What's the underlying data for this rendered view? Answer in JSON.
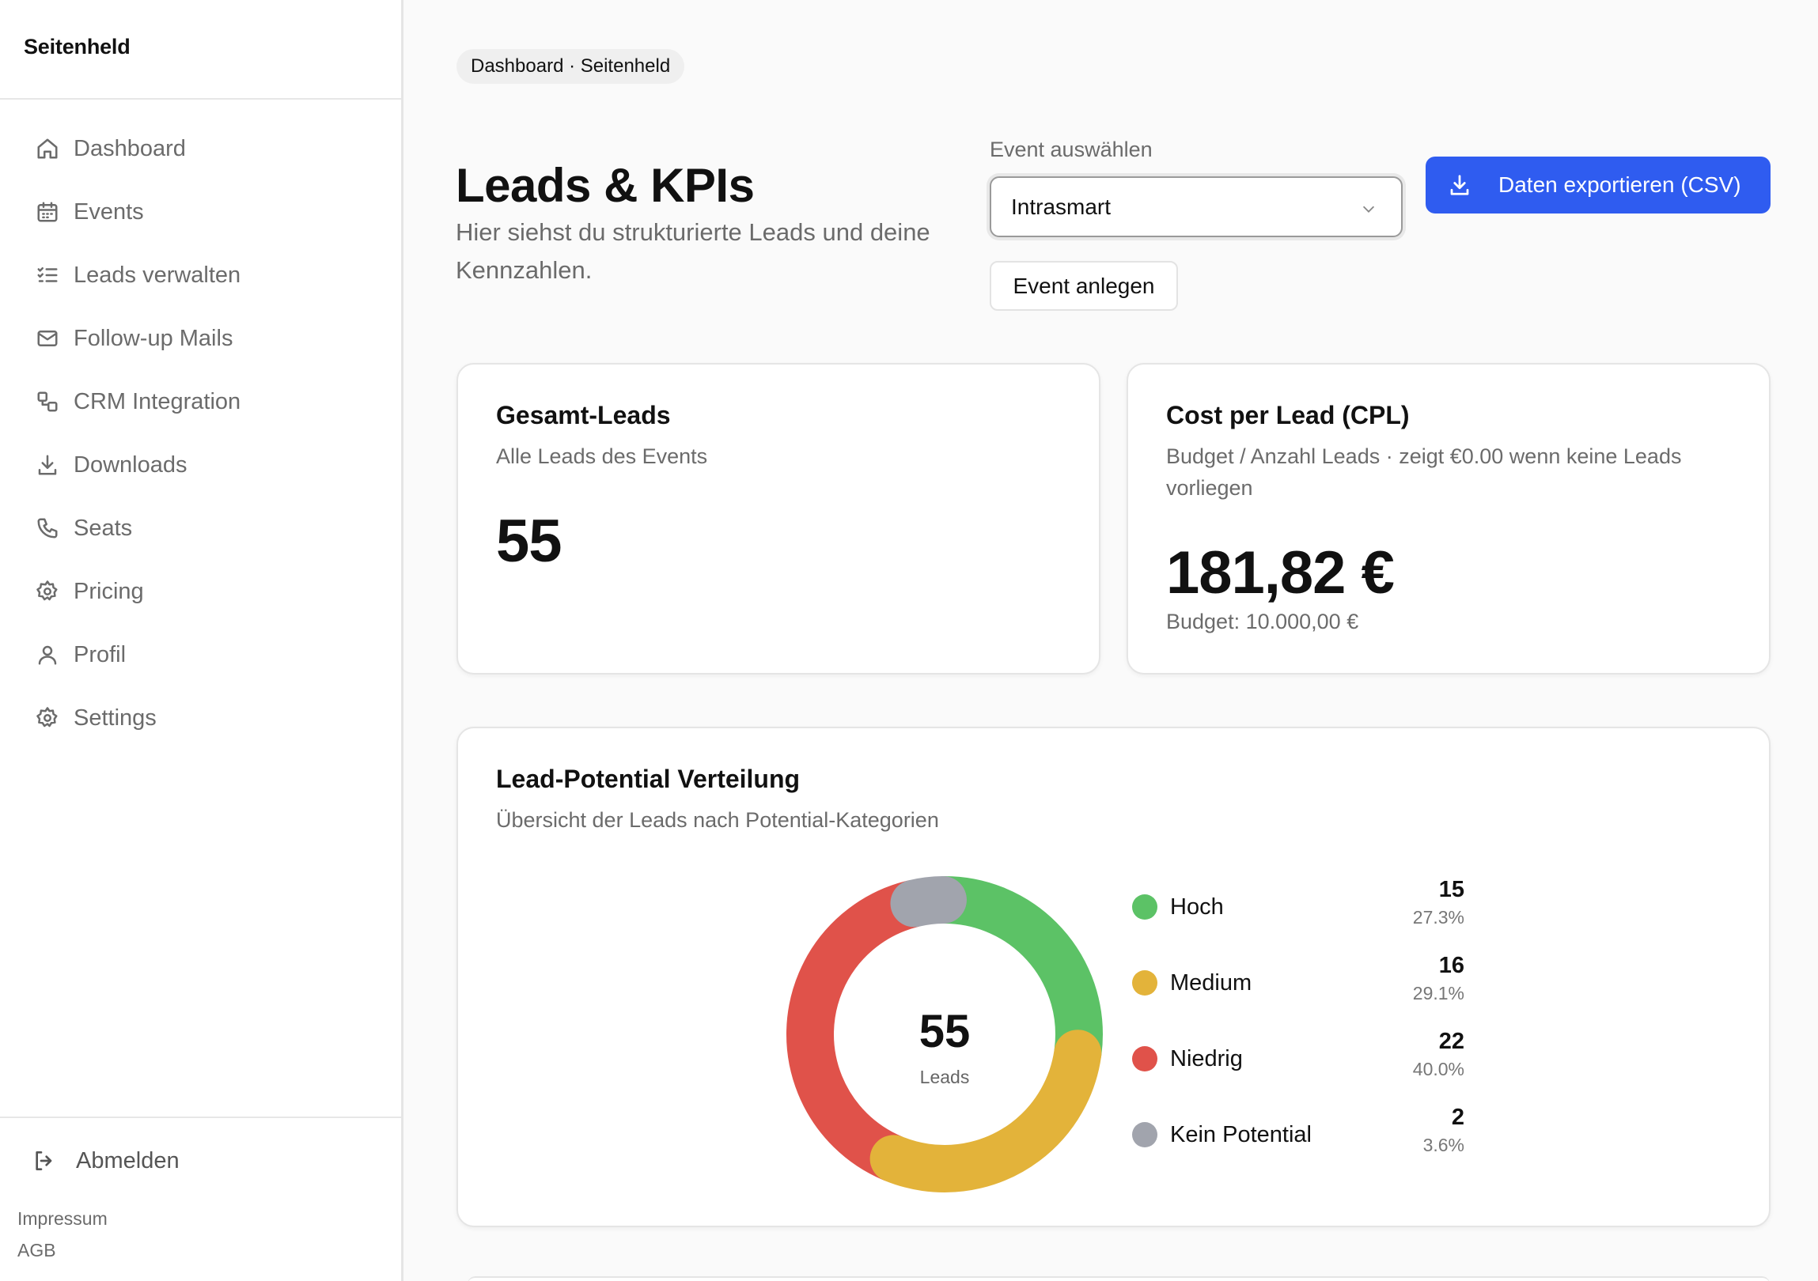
{
  "app": {
    "brand": "Seitenheld"
  },
  "sidebar": {
    "items": [
      {
        "label": "Dashboard",
        "icon": "home-icon"
      },
      {
        "label": "Events",
        "icon": "calendar-icon"
      },
      {
        "label": "Leads verwalten",
        "icon": "checklist-icon"
      },
      {
        "label": "Follow-up Mails",
        "icon": "mail-icon"
      },
      {
        "label": "CRM Integration",
        "icon": "integration-icon"
      },
      {
        "label": "Downloads",
        "icon": "download-icon"
      },
      {
        "label": "Seats",
        "icon": "phone-icon"
      },
      {
        "label": "Pricing",
        "icon": "gear-icon"
      },
      {
        "label": "Profil",
        "icon": "user-icon"
      },
      {
        "label": "Settings",
        "icon": "gear-icon"
      }
    ],
    "logout_label": "Abmelden",
    "footer": {
      "impressum": "Impressum",
      "agb": "AGB"
    }
  },
  "header": {
    "breadcrumb": "Dashboard · Seitenheld",
    "title": "Leads & KPIs",
    "subtitle": "Hier siehst du strukturierte Leads und deine Kennzahlen.",
    "event_label": "Event auswählen",
    "event_selected": "Intrasmart",
    "create_event_label": "Event anlegen",
    "export_label": "Daten exportieren (CSV)"
  },
  "kpis": {
    "total": {
      "title": "Gesamt-Leads",
      "subtitle": "Alle Leads des Events",
      "value": "55"
    },
    "cpl": {
      "title": "Cost per Lead (CPL)",
      "subtitle": "Budget / Anzahl Leads · zeigt €0.00 wenn keine Leads vorliegen",
      "value": "181,82 €",
      "budget": "Budget: 10.000,00 €"
    }
  },
  "distribution": {
    "title": "Lead-Potential Verteilung",
    "subtitle": "Übersicht der Leads nach Potential-Kategorien",
    "center_value": "55",
    "center_label": "Leads"
  },
  "chart_data": {
    "type": "pie",
    "categories": [
      "Hoch",
      "Medium",
      "Niedrig",
      "Kein Potential"
    ],
    "values": [
      15,
      16,
      22,
      2
    ],
    "percentages": [
      "27.3%",
      "29.1%",
      "40.0%",
      "3.6%"
    ],
    "colors": [
      "#5cc266",
      "#e3b33a",
      "#e0524a",
      "#a1a4ad"
    ],
    "total": 55,
    "legend_position": "right"
  }
}
